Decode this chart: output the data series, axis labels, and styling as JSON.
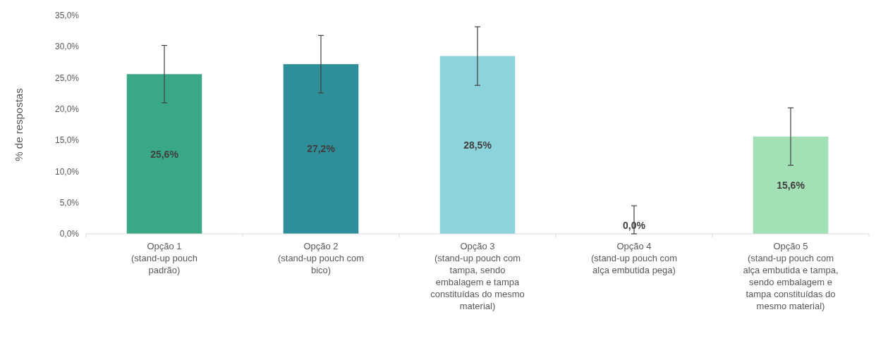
{
  "chart_data": {
    "type": "bar",
    "ylabel": "% de respostas",
    "categories": [
      "Opção 1\n(stand-up pouch\npadrão)",
      "Opção 2\n(stand-up pouch com\nbico)",
      "Opção 3\n(stand-up pouch com\ntampa, sendo\nembalagem e tampa\nconstituídas do mesmo\nmaterial)",
      "Opção 4\n(stand-up pouch com\nalça embutida pega)",
      "Opção 5\n(stand-up pouch com\nalça embutida e tampa,\nsendo embalagem e\ntampa constituídas do\nmesmo material)"
    ],
    "values": [
      25.6,
      27.2,
      28.5,
      0.0,
      15.6
    ],
    "value_labels": [
      "25,6%",
      "27,2%",
      "28,5%",
      "0,0%",
      "15,6%"
    ],
    "errors": [
      4.6,
      4.6,
      4.7,
      [
        0,
        4.5
      ],
      4.6
    ],
    "colors": [
      "#3aa886",
      "#2e8f9a",
      "#8dd3dc",
      "#3aa886",
      "#a3e0b5"
    ],
    "ylim": [
      0,
      35
    ],
    "yticks": [
      {
        "value": 0,
        "label": "0,0%"
      },
      {
        "value": 5,
        "label": "5,0%"
      },
      {
        "value": 10,
        "label": "10,0%"
      },
      {
        "value": 15,
        "label": "15,0%"
      },
      {
        "value": 20,
        "label": "20,0%"
      },
      {
        "value": 25,
        "label": "25,0%"
      },
      {
        "value": 30,
        "label": "30,0%"
      },
      {
        "value": 35,
        "label": "35,0%"
      }
    ],
    "grid": false
  }
}
